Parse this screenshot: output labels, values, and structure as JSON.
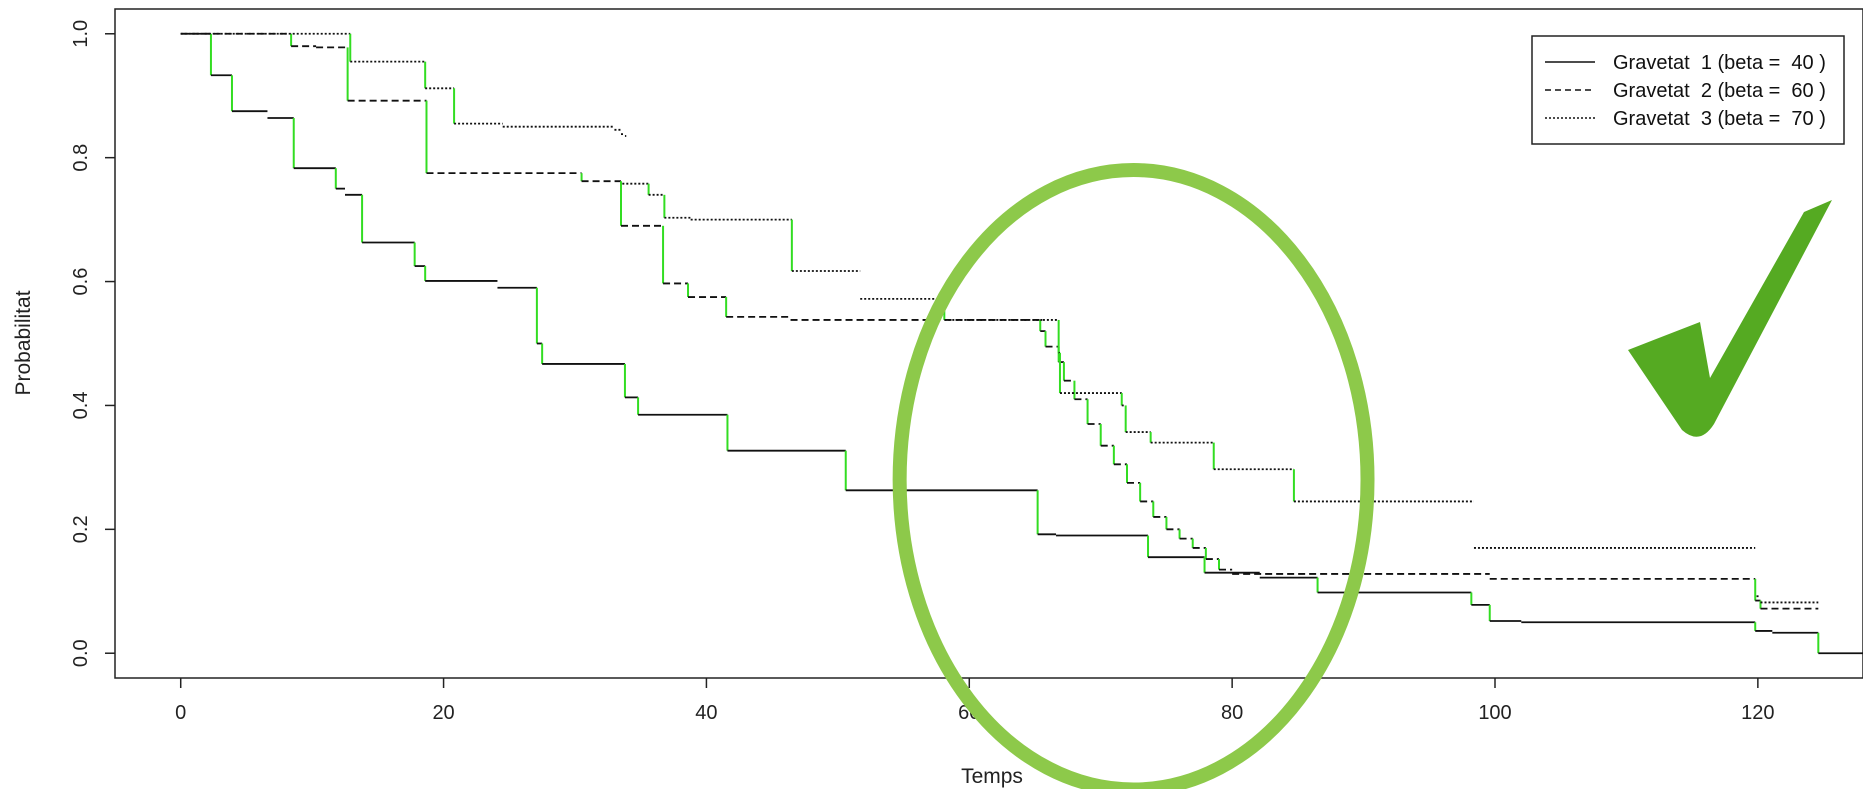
{
  "colors": {
    "line": "#111111",
    "step_drop": "#33dd22",
    "annotation": "#8dc94a",
    "check": "#55aa22"
  },
  "chart_data": {
    "type": "line",
    "chart_style": "Kaplan-Meier step survival curves",
    "xlabel": "Temps",
    "ylabel": "Probabilitat",
    "xlim": [
      -5,
      128
    ],
    "ylim": [
      -0.04,
      1.04
    ],
    "x_ticks": [
      0,
      20,
      40,
      60,
      80,
      100,
      120
    ],
    "x_tick_labels": [
      "0",
      "20",
      "40",
      "60",
      "80",
      "100",
      "120"
    ],
    "y_ticks": [
      0.0,
      0.2,
      0.4,
      0.6,
      0.8,
      1.0
    ],
    "y_tick_labels": [
      "0.0",
      "0.2",
      "0.4",
      "0.6",
      "0.8",
      "1.0"
    ],
    "grid": false,
    "legend_position": "top-right",
    "series": [
      {
        "name": "Gravetat  1 (beta =  40 )",
        "style": "solid",
        "steps": [
          [
            0,
            1.0
          ],
          [
            2.3,
            0.933
          ],
          [
            3.9,
            0.875
          ],
          [
            6.6,
            0.864
          ],
          [
            8.6,
            0.783
          ],
          [
            11.8,
            0.75
          ],
          [
            12.5,
            0.74
          ],
          [
            13.8,
            0.663
          ],
          [
            17.8,
            0.625
          ],
          [
            18.6,
            0.601
          ],
          [
            24.1,
            0.59
          ],
          [
            27.1,
            0.5
          ],
          [
            27.5,
            0.467
          ],
          [
            33.8,
            0.413
          ],
          [
            34.8,
            0.385
          ],
          [
            41.6,
            0.327
          ],
          [
            50.6,
            0.263
          ],
          [
            65.2,
            0.192
          ],
          [
            66.6,
            0.19
          ],
          [
            73.6,
            0.155
          ],
          [
            77.9,
            0.13
          ],
          [
            82.1,
            0.122
          ],
          [
            86.5,
            0.098
          ],
          [
            98.2,
            0.078
          ],
          [
            99.6,
            0.052
          ],
          [
            102.0,
            0.05
          ],
          [
            119.8,
            0.036
          ],
          [
            121.1,
            0.033
          ],
          [
            124.6,
            0.0
          ]
        ],
        "end": 128
      },
      {
        "name": "Gravetat  2 (beta =  60 )",
        "style": "dashed",
        "steps": [
          [
            0,
            1.0
          ],
          [
            8.4,
            0.98
          ],
          [
            10.3,
            0.978
          ],
          [
            12.7,
            0.892
          ],
          [
            18.7,
            0.775
          ],
          [
            30.5,
            0.762
          ],
          [
            33.5,
            0.69
          ],
          [
            36.7,
            0.597
          ],
          [
            38.6,
            0.575
          ],
          [
            41.5,
            0.543
          ],
          [
            46.4,
            0.538
          ],
          [
            65.4,
            0.52
          ],
          [
            65.8,
            0.495
          ],
          [
            66.8,
            0.47
          ],
          [
            67.2,
            0.44
          ],
          [
            68.0,
            0.41
          ],
          [
            69.0,
            0.37
          ],
          [
            70.0,
            0.335
          ],
          [
            71.0,
            0.305
          ],
          [
            72.0,
            0.275
          ],
          [
            73.0,
            0.245
          ],
          [
            74.0,
            0.22
          ],
          [
            75.0,
            0.2
          ],
          [
            76.0,
            0.185
          ],
          [
            77.0,
            0.17
          ],
          [
            78.0,
            0.152
          ],
          [
            79.0,
            0.135
          ],
          [
            80.0,
            0.128
          ],
          [
            99.6,
            0.12
          ],
          [
            119.8,
            0.085
          ],
          [
            120.2,
            0.072
          ]
        ],
        "end": 124.6
      },
      {
        "name": "Gravetat  3 (beta =  70 )",
        "style": "dotted",
        "steps": [
          [
            0,
            1.0
          ],
          [
            12.9,
            0.955
          ],
          [
            18.6,
            0.912
          ],
          [
            20.8,
            0.855
          ],
          [
            24.5,
            0.85
          ],
          [
            33.0,
            0.845
          ],
          [
            33.5,
            0.838
          ],
          [
            33.8,
            0.835
          ]
        ],
        "end": 33.9,
        "segments": [
          {
            "steps": [
              [
                33.6,
                0.758
              ],
              [
                35.6,
                0.74
              ],
              [
                36.8,
                0.703
              ],
              [
                38.8,
                0.7
              ],
              [
                46.5,
                0.617
              ]
            ],
            "end": 51.7
          },
          {
            "steps": [
              [
                51.7,
                0.572
              ],
              [
                58.1,
                0.538
              ],
              [
                65.6,
                0.538
              ],
              [
                66.8,
                0.485
              ],
              [
                66.9,
                0.42
              ],
              [
                71.6,
                0.4
              ],
              [
                71.9,
                0.357
              ],
              [
                73.8,
                0.34
              ],
              [
                78.6,
                0.297
              ],
              [
                84.7,
                0.245
              ]
            ],
            "end": 98.4
          },
          {
            "steps": [
              [
                98.4,
                0.17
              ]
            ],
            "end": 119.8
          },
          {
            "steps": [
              [
                119.9,
                0.092
              ],
              [
                120.2,
                0.082
              ]
            ],
            "end": 124.6
          }
        ]
      }
    ],
    "annotations": [
      {
        "type": "ellipse",
        "center": [
          72.5,
          0.28
        ],
        "radii": [
          17.8,
          0.5
        ],
        "description": "highlight of crossing region"
      },
      {
        "type": "checkmark",
        "description": "green tick mark"
      }
    ]
  }
}
